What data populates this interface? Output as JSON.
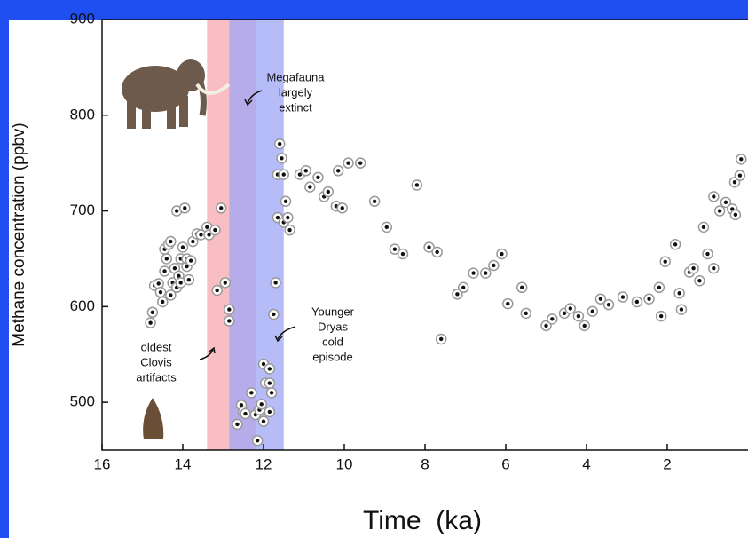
{
  "chart_data": {
    "type": "scatter",
    "x_label": "Time  (ka)",
    "y_label": "Methane concentration (ppbv)",
    "xlim": [
      16,
      0
    ],
    "xticks": [
      16,
      14,
      12,
      10,
      8,
      6,
      4,
      2
    ],
    "ylim": [
      450,
      900
    ],
    "yticks": [
      500,
      600,
      700,
      800,
      900
    ],
    "spans": [
      {
        "range": [
          13.4,
          12.2
        ],
        "color": "#f7a8b0"
      },
      {
        "range": [
          12.85,
          11.5
        ],
        "color": "#9ea6f5"
      }
    ],
    "annotations": [
      {
        "lines": [
          "Megafauna",
          "largely",
          "extinct"
        ]
      },
      {
        "lines": [
          "Younger",
          "Dryas",
          "cold",
          "episode"
        ]
      },
      {
        "lines": [
          "oldest",
          "Clovis",
          "artifacts"
        ]
      }
    ],
    "x": [
      14.8,
      14.75,
      14.7,
      14.6,
      14.55,
      14.5,
      14.45,
      14.45,
      14.4,
      14.35,
      14.3,
      14.3,
      14.25,
      14.2,
      14.15,
      14.15,
      14.1,
      14.05,
      14.05,
      14,
      13.95,
      13.9,
      13.9,
      13.85,
      13.8,
      13.75,
      13.65,
      13.55,
      13.4,
      13.35,
      13.2,
      13.15,
      13.05,
      12.95,
      12.85,
      12.85,
      12.65,
      12.55,
      12.5,
      12.45,
      12.3,
      12.2,
      12.15,
      12.1,
      12.05,
      12,
      12,
      11.95,
      11.85,
      11.85,
      11.85,
      11.8,
      11.75,
      11.7,
      11.65,
      11.65,
      11.6,
      11.55,
      11.5,
      11.5,
      11.45,
      11.4,
      11.35,
      11.1,
      10.95,
      10.85,
      10.65,
      10.5,
      10.4,
      10.2,
      10.15,
      10.05,
      9.9,
      9.6,
      9.25,
      8.95,
      8.75,
      8.55,
      8.2,
      7.9,
      7.7,
      7.6,
      7.2,
      7.05,
      6.8,
      6.5,
      6.3,
      6.1,
      5.95,
      5.6,
      5.5,
      5.0,
      4.85,
      4.55,
      4.4,
      4.2,
      4.05,
      3.85,
      3.65,
      3.45,
      3.1,
      2.75,
      2.45,
      2.2,
      2.15,
      2.05,
      1.8,
      1.7,
      1.65,
      1.45,
      1.35,
      1.2,
      1.1,
      1.0,
      0.85,
      0.85,
      0.7,
      0.55,
      0.39,
      0.33,
      0.31,
      0.2,
      0.17
    ],
    "values": [
      583,
      594,
      622,
      624,
      615,
      605,
      637,
      660,
      650,
      665,
      668,
      612,
      625,
      640,
      620,
      700,
      632,
      650,
      625,
      662,
      703,
      642,
      650,
      628,
      648,
      668,
      676,
      675,
      683,
      675,
      680,
      617,
      703,
      625,
      597,
      585,
      477,
      497,
      490,
      488,
      510,
      487,
      460,
      492,
      498,
      480,
      540,
      520,
      535,
      490,
      520,
      510,
      592,
      625,
      738,
      693,
      770,
      755,
      738,
      688,
      710,
      693,
      680,
      738,
      742,
      725,
      735,
      715,
      720,
      705,
      742,
      703,
      750,
      750,
      710,
      683,
      660,
      655,
      727,
      662,
      657,
      566,
      613,
      620,
      635,
      635,
      643,
      655,
      603,
      620,
      593,
      580,
      587,
      593,
      598,
      590,
      580,
      595,
      608,
      602,
      610,
      605,
      608,
      620,
      590,
      647,
      665,
      614,
      597,
      636,
      640,
      627,
      683,
      655,
      715,
      640,
      700,
      709,
      702,
      730,
      696,
      737,
      754
    ],
    "marker_color": "#111111"
  }
}
